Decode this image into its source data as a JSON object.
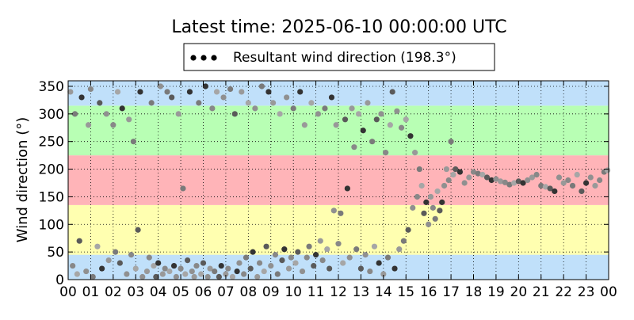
{
  "chart_data": {
    "type": "scatter",
    "title": "Latest time: 2025-06-10 00:00:00 UTC",
    "ylabel": "Wind direction (°)",
    "xlabel": "",
    "xlim": [
      0,
      24
    ],
    "ylim": [
      0,
      360
    ],
    "x_tick_labels": [
      "00",
      "01",
      "02",
      "03",
      "04",
      "05",
      "06",
      "07",
      "08",
      "09",
      "10",
      "11",
      "12",
      "13",
      "14",
      "15",
      "16",
      "17",
      "18",
      "19",
      "20",
      "21",
      "22",
      "23",
      "00"
    ],
    "y_ticks": [
      0,
      50,
      100,
      150,
      200,
      250,
      300,
      350
    ],
    "grid": true,
    "legend": {
      "position": "top-center",
      "entries": [
        "Resultant wind direction (198.3°)"
      ]
    },
    "background_bands": [
      {
        "from": 0,
        "to": 45,
        "color": "#c0e0fa"
      },
      {
        "from": 45,
        "to": 135,
        "color": "#ffffb0"
      },
      {
        "from": 135,
        "to": 225,
        "color": "#ffb4b8"
      },
      {
        "from": 225,
        "to": 315,
        "color": "#b8ffb4"
      },
      {
        "from": 315,
        "to": 360,
        "color": "#c0e0fa"
      }
    ],
    "series": [
      {
        "name": "Resultant wind direction (198.3°)",
        "points": [
          [
            0.1,
            340
          ],
          [
            0.2,
            25
          ],
          [
            0.3,
            300
          ],
          [
            0.4,
            10
          ],
          [
            0.5,
            70
          ],
          [
            0.6,
            330
          ],
          [
            0.8,
            15
          ],
          [
            0.9,
            280
          ],
          [
            1.0,
            345
          ],
          [
            1.1,
            5
          ],
          [
            1.3,
            60
          ],
          [
            1.4,
            320
          ],
          [
            1.5,
            20
          ],
          [
            1.7,
            300
          ],
          [
            1.8,
            35
          ],
          [
            2.0,
            280
          ],
          [
            2.1,
            50
          ],
          [
            2.2,
            340
          ],
          [
            2.3,
            30
          ],
          [
            2.4,
            310
          ],
          [
            2.6,
            10
          ],
          [
            2.7,
            290
          ],
          [
            2.8,
            45
          ],
          [
            2.9,
            250
          ],
          [
            3.0,
            20
          ],
          [
            3.1,
            90
          ],
          [
            3.2,
            340
          ],
          [
            3.3,
            5
          ],
          [
            3.5,
            15
          ],
          [
            3.6,
            40
          ],
          [
            3.7,
            320
          ],
          [
            3.8,
            25
          ],
          [
            3.9,
            5
          ],
          [
            4.0,
            30
          ],
          [
            4.1,
            350
          ],
          [
            4.2,
            10
          ],
          [
            4.3,
            20
          ],
          [
            4.4,
            340
          ],
          [
            4.5,
            15
          ],
          [
            4.6,
            330
          ],
          [
            4.7,
            25
          ],
          [
            4.8,
            5
          ],
          [
            4.9,
            300
          ],
          [
            5.0,
            20
          ],
          [
            5.1,
            165
          ],
          [
            5.2,
            10
          ],
          [
            5.3,
            35
          ],
          [
            5.4,
            340
          ],
          [
            5.5,
            15
          ],
          [
            5.6,
            5
          ],
          [
            5.7,
            25
          ],
          [
            5.8,
            320
          ],
          [
            5.9,
            10
          ],
          [
            6.0,
            30
          ],
          [
            6.1,
            350
          ],
          [
            6.2,
            5
          ],
          [
            6.3,
            20
          ],
          [
            6.4,
            310
          ],
          [
            6.5,
            15
          ],
          [
            6.6,
            340
          ],
          [
            6.7,
            5
          ],
          [
            6.8,
            25
          ],
          [
            6.9,
            330
          ],
          [
            7.0,
            10
          ],
          [
            7.1,
            20
          ],
          [
            7.2,
            345
          ],
          [
            7.3,
            5
          ],
          [
            7.4,
            300
          ],
          [
            7.5,
            15
          ],
          [
            7.6,
            30
          ],
          [
            7.7,
            340
          ],
          [
            7.8,
            10
          ],
          [
            7.9,
            40
          ],
          [
            8.0,
            320
          ],
          [
            8.1,
            20
          ],
          [
            8.2,
            50
          ],
          [
            8.3,
            310
          ],
          [
            8.4,
            5
          ],
          [
            8.5,
            30
          ],
          [
            8.6,
            350
          ],
          [
            8.7,
            15
          ],
          [
            8.8,
            60
          ],
          [
            8.9,
            340
          ],
          [
            9.0,
            25
          ],
          [
            9.1,
            320
          ],
          [
            9.2,
            45
          ],
          [
            9.3,
            10
          ],
          [
            9.4,
            300
          ],
          [
            9.5,
            35
          ],
          [
            9.6,
            55
          ],
          [
            9.7,
            330
          ],
          [
            9.8,
            20
          ],
          [
            9.9,
            40
          ],
          [
            10.0,
            310
          ],
          [
            10.1,
            30
          ],
          [
            10.2,
            50
          ],
          [
            10.3,
            340
          ],
          [
            10.4,
            15
          ],
          [
            10.5,
            280
          ],
          [
            10.6,
            40
          ],
          [
            10.7,
            60
          ],
          [
            10.8,
            320
          ],
          [
            10.9,
            25
          ],
          [
            11.0,
            45
          ],
          [
            11.1,
            300
          ],
          [
            11.2,
            70
          ],
          [
            11.3,
            35
          ],
          [
            11.4,
            310
          ],
          [
            11.5,
            55
          ],
          [
            11.6,
            20
          ],
          [
            11.7,
            330
          ],
          [
            11.8,
            125
          ],
          [
            11.9,
            280
          ],
          [
            12.0,
            65
          ],
          [
            12.1,
            120
          ],
          [
            12.2,
            30
          ],
          [
            12.3,
            290
          ],
          [
            12.4,
            165
          ],
          [
            12.5,
            40
          ],
          [
            12.6,
            310
          ],
          [
            12.7,
            240
          ],
          [
            12.8,
            55
          ],
          [
            12.9,
            300
          ],
          [
            13.0,
            20
          ],
          [
            13.1,
            270
          ],
          [
            13.2,
            45
          ],
          [
            13.3,
            320
          ],
          [
            13.4,
            15
          ],
          [
            13.5,
            250
          ],
          [
            13.6,
            60
          ],
          [
            13.7,
            290
          ],
          [
            13.8,
            30
          ],
          [
            13.9,
            300
          ],
          [
            14.0,
            10
          ],
          [
            14.1,
            230
          ],
          [
            14.2,
            40
          ],
          [
            14.3,
            280
          ],
          [
            14.4,
            340
          ],
          [
            14.5,
            20
          ],
          [
            14.6,
            305
          ],
          [
            14.7,
            55
          ],
          [
            14.8,
            275
          ],
          [
            14.9,
            70
          ],
          [
            15.0,
            290
          ],
          [
            15.1,
            90
          ],
          [
            15.2,
            260
          ],
          [
            15.3,
            130
          ],
          [
            15.4,
            230
          ],
          [
            15.5,
            150
          ],
          [
            15.6,
            200
          ],
          [
            15.7,
            170
          ],
          [
            15.8,
            120
          ],
          [
            15.9,
            140
          ],
          [
            16.0,
            100
          ],
          [
            16.1,
            150
          ],
          [
            16.2,
            130
          ],
          [
            16.3,
            110
          ],
          [
            16.4,
            160
          ],
          [
            16.5,
            125
          ],
          [
            16.6,
            140
          ],
          [
            16.7,
            170
          ],
          [
            16.8,
            200
          ],
          [
            16.9,
            180
          ],
          [
            17.0,
            250
          ],
          [
            17.1,
            190
          ],
          [
            17.2,
            200
          ],
          [
            17.4,
            195
          ],
          [
            17.6,
            175
          ],
          [
            17.8,
            185
          ],
          [
            18.0,
            195
          ],
          [
            18.2,
            192
          ],
          [
            18.4,
            190
          ],
          [
            18.6,
            185
          ],
          [
            18.8,
            180
          ],
          [
            19.0,
            182
          ],
          [
            19.2,
            178
          ],
          [
            19.4,
            176
          ],
          [
            19.6,
            172
          ],
          [
            19.8,
            175
          ],
          [
            20.0,
            178
          ],
          [
            20.2,
            175
          ],
          [
            20.4,
            180
          ],
          [
            20.6,
            185
          ],
          [
            20.8,
            190
          ],
          [
            21.0,
            170
          ],
          [
            21.2,
            168
          ],
          [
            21.4,
            165
          ],
          [
            21.6,
            160
          ],
          [
            21.8,
            185
          ],
          [
            22.0,
            175
          ],
          [
            22.2,
            180
          ],
          [
            22.4,
            170
          ],
          [
            22.6,
            190
          ],
          [
            22.8,
            160
          ],
          [
            23.0,
            175
          ],
          [
            23.2,
            185
          ],
          [
            23.4,
            170
          ],
          [
            23.6,
            180
          ],
          [
            23.8,
            195
          ],
          [
            23.95,
            198
          ]
        ]
      }
    ]
  }
}
